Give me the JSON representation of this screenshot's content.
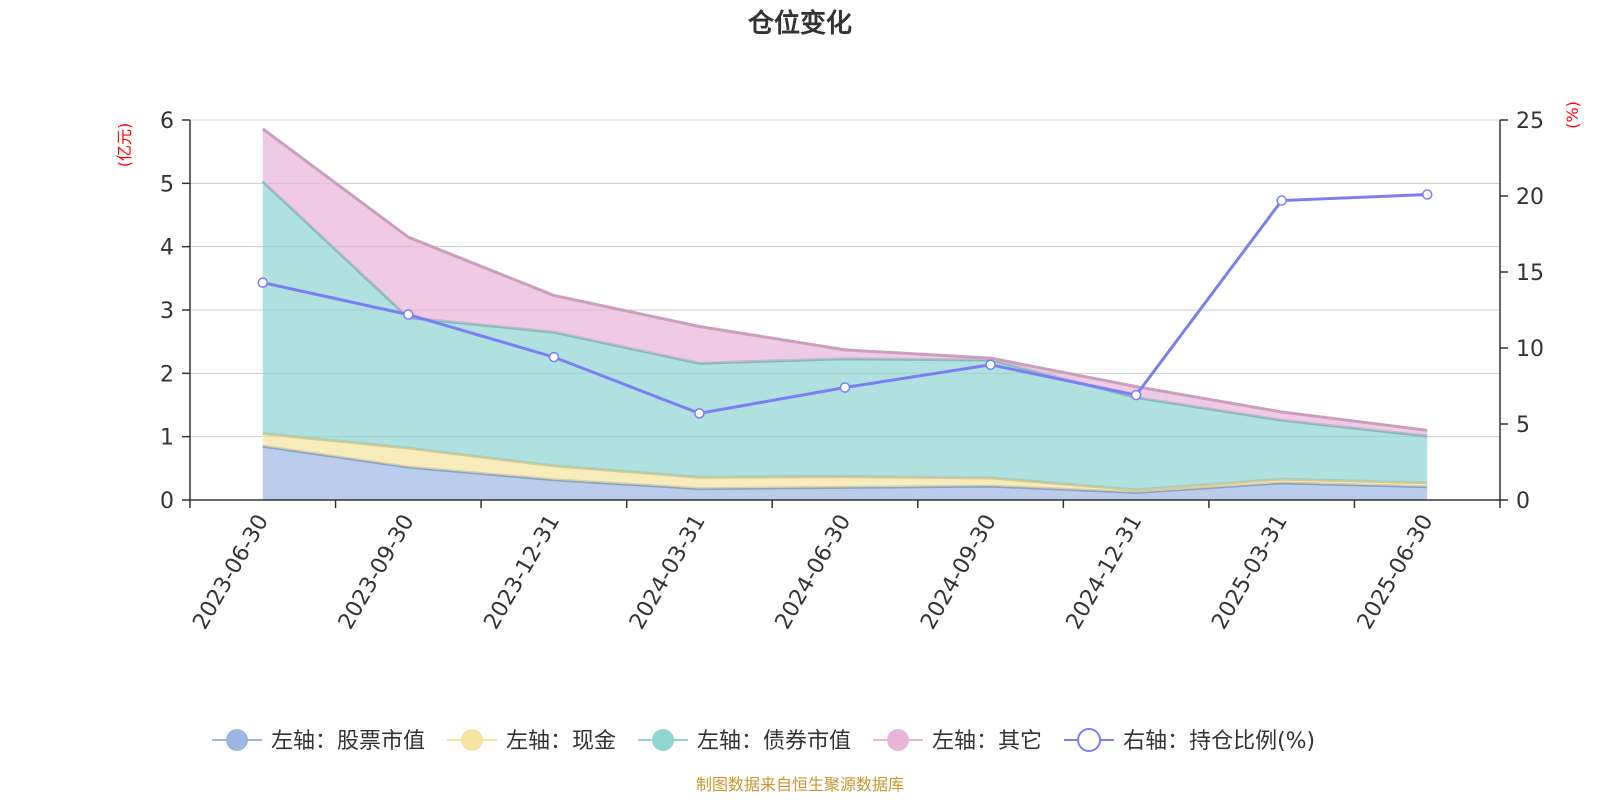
{
  "chart_data": {
    "type": "area",
    "title": "仓位变化",
    "x": [
      "2023-06-30",
      "2023-09-30",
      "2023-12-31",
      "2024-03-31",
      "2024-06-30",
      "2024-09-30",
      "2024-12-31",
      "2025-03-31",
      "2025-06-30"
    ],
    "y_left": {
      "unit": "(亿元)",
      "range": [
        0,
        6
      ],
      "ticks": [
        "0",
        "1",
        "2",
        "3",
        "4",
        "5",
        "6"
      ]
    },
    "y_right": {
      "unit": "(%)",
      "range": [
        0,
        25
      ],
      "ticks": [
        "0",
        "5",
        "10",
        "15",
        "20",
        "25"
      ]
    },
    "stacked": true,
    "series": [
      {
        "name": "左轴：股票市值",
        "axis": "left",
        "color": "#9bb6e0",
        "values": [
          0.85,
          0.52,
          0.32,
          0.18,
          0.2,
          0.22,
          0.12,
          0.27,
          0.21
        ]
      },
      {
        "name": "左轴：现金",
        "axis": "left",
        "color": "#f5e3a0",
        "values": [
          0.2,
          0.3,
          0.22,
          0.18,
          0.17,
          0.13,
          0.04,
          0.06,
          0.06
        ]
      },
      {
        "name": "左轴：债券市值",
        "axis": "left",
        "color": "#8fd3d3",
        "values": [
          3.98,
          2.06,
          2.11,
          1.8,
          1.86,
          1.86,
          1.46,
          0.93,
          0.74
        ]
      },
      {
        "name": "左轴：其它",
        "axis": "left",
        "color": "#e8b4d8",
        "values": [
          0.83,
          1.27,
          0.58,
          0.58,
          0.14,
          0.03,
          0.17,
          0.13,
          0.09
        ]
      },
      {
        "name": "右轴：持仓比例(%)",
        "axis": "right",
        "color": "#7b7ff0",
        "type": "line",
        "values": [
          14.3,
          12.2,
          9.4,
          5.7,
          7.4,
          8.9,
          6.9,
          19.7,
          20.1
        ]
      }
    ],
    "grid": true,
    "legend_position": "bottom"
  },
  "source_note": "制图数据来自恒生聚源数据库"
}
